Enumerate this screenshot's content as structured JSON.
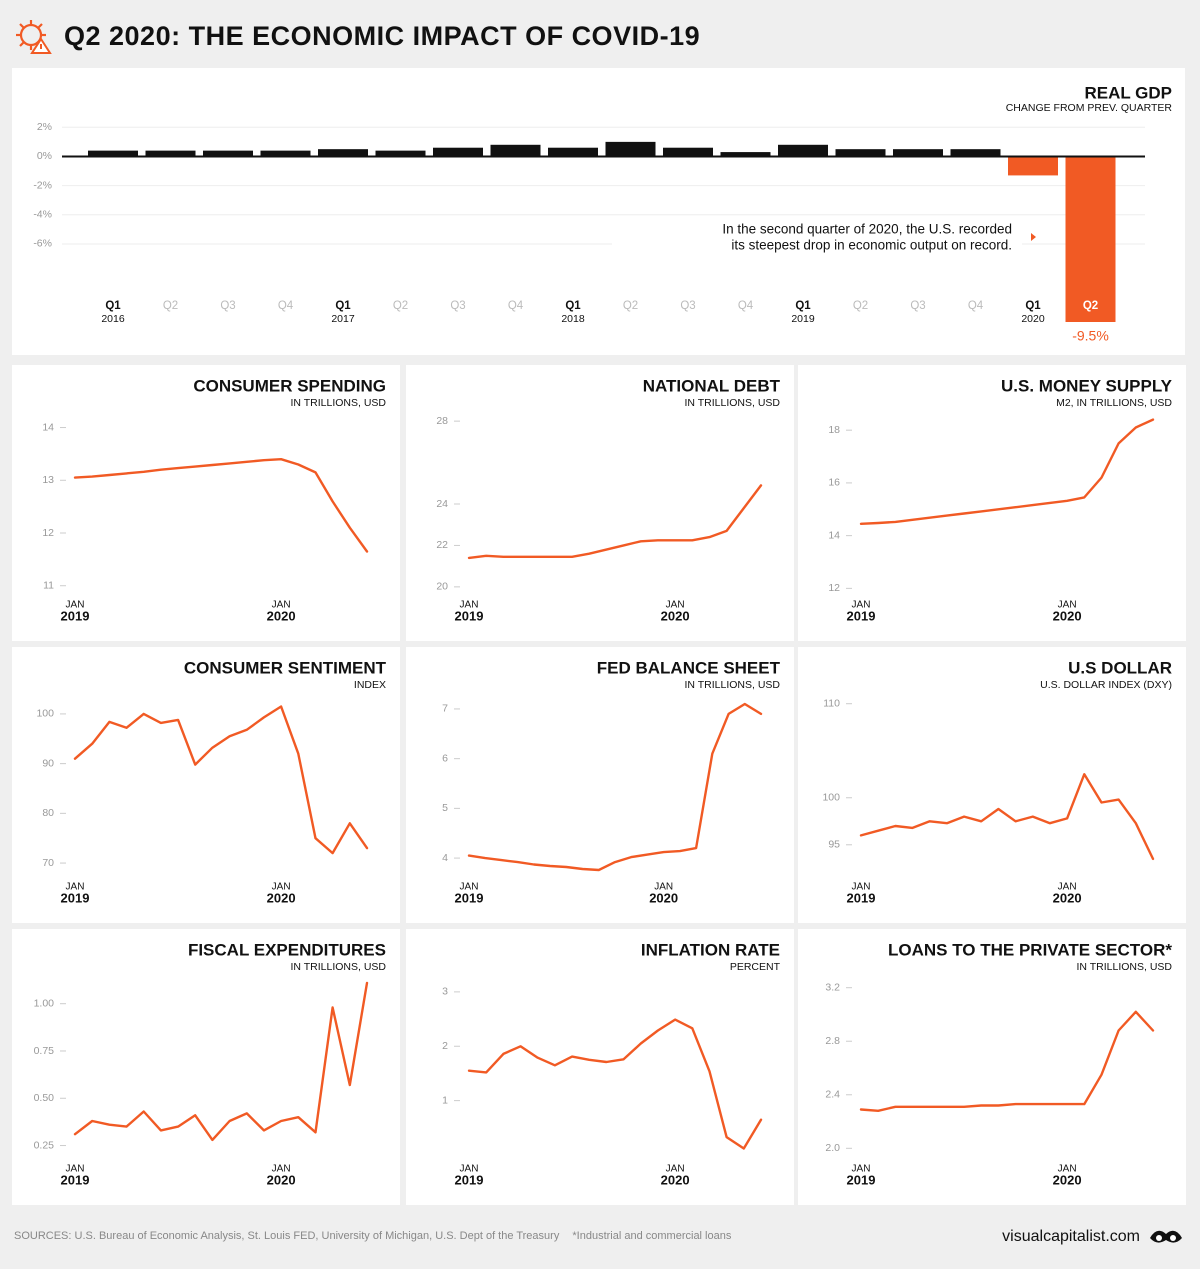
{
  "header": {
    "title": "Q2 2020: THE ECONOMIC IMPACT OF COVID-19"
  },
  "footer": {
    "sources": "SOURCES: U.S. Bureau of Economic Analysis, St. Louis FED, University of Michigan, U.S. Dept of the Treasury",
    "note": "*Industrial and commercial loans",
    "brand": "visualcapitalist.com"
  },
  "chart_data": [
    {
      "type": "bar",
      "title": "REAL GDP",
      "subtitle": "CHANGE FROM PREV. QUARTER",
      "categories": [
        "Q1",
        "Q2",
        "Q3",
        "Q4",
        "Q1",
        "Q2",
        "Q3",
        "Q4",
        "Q1",
        "Q2",
        "Q3",
        "Q4",
        "Q1",
        "Q2",
        "Q3",
        "Q4",
        "Q1",
        "Q2"
      ],
      "years": [
        "2016",
        null,
        null,
        null,
        "2017",
        null,
        null,
        null,
        "2018",
        null,
        null,
        null,
        "2019",
        null,
        null,
        null,
        "2020",
        null
      ],
      "values": [
        0.4,
        0.4,
        0.4,
        0.4,
        0.5,
        0.4,
        0.6,
        0.8,
        0.6,
        1.0,
        0.6,
        0.3,
        0.8,
        0.5,
        0.5,
        0.5,
        -1.3,
        -9.5
      ],
      "value_labels": [
        null,
        null,
        null,
        null,
        null,
        null,
        null,
        null,
        null,
        null,
        null,
        null,
        null,
        null,
        null,
        null,
        null,
        "-9.5%"
      ],
      "colors": [
        "#111111",
        "#111111",
        "#111111",
        "#111111",
        "#111111",
        "#111111",
        "#111111",
        "#111111",
        "#111111",
        "#111111",
        "#111111",
        "#111111",
        "#111111",
        "#111111",
        "#111111",
        "#111111",
        "#f15a24",
        "#f15a24"
      ],
      "ylim": [
        -9.5,
        2.5
      ],
      "yticks": [
        {
          "value": 2,
          "label": "2%"
        },
        {
          "value": 0,
          "label": "0%"
        },
        {
          "value": -2,
          "label": "-2%"
        },
        {
          "value": -4,
          "label": "-4%"
        },
        {
          "value": -6,
          "label": "-6%"
        }
      ],
      "grid": true,
      "annotation": [
        "In the second quarter of 2020, the U.S. recorded",
        "its steepest drop in economic output on record."
      ]
    },
    {
      "type": "line",
      "title": "CONSUMER SPENDING",
      "subtitle": "IN TRILLIONS, USD",
      "color": "#f15a24",
      "x": [
        "2019-01",
        "2019-02",
        "2019-03",
        "2019-04",
        "2019-05",
        "2019-06",
        "2019-07",
        "2019-08",
        "2019-09",
        "2019-10",
        "2019-11",
        "2019-12",
        "2020-01",
        "2020-02",
        "2020-03",
        "2020-04",
        "2020-05",
        "2020-06"
      ],
      "values": [
        13.05,
        13.07,
        13.1,
        13.13,
        13.16,
        13.2,
        13.23,
        13.26,
        13.29,
        13.32,
        13.35,
        13.38,
        13.4,
        13.3,
        13.15,
        12.6,
        12.1,
        11.65
      ],
      "xlim": [
        "2019-01",
        "2020-06"
      ],
      "xticks": [
        {
          "value": "2019-01",
          "label": "JAN",
          "year": "2019"
        },
        {
          "value": "2020-01",
          "label": "JAN",
          "year": "2020"
        }
      ],
      "ylim": [
        10.9,
        14.2
      ],
      "yticks": [
        11,
        12,
        13,
        14
      ]
    },
    {
      "type": "line",
      "title": "NATIONAL DEBT",
      "subtitle": "IN TRILLIONS, USD",
      "color": "#f15a24",
      "x": [
        "2019-01",
        "2019-02",
        "2019-03",
        "2019-04",
        "2019-05",
        "2019-06",
        "2019-07",
        "2019-08",
        "2019-09",
        "2019-10",
        "2019-11",
        "2019-12",
        "2020-01",
        "2020-02",
        "2020-03",
        "2020-04",
        "2020-05",
        "2020-06"
      ],
      "values": [
        21.4,
        21.5,
        21.45,
        21.45,
        21.45,
        21.45,
        21.45,
        21.6,
        21.8,
        22.0,
        22.2,
        22.25,
        22.25,
        22.25,
        22.4,
        22.7,
        23.8,
        24.9
      ],
      "xlim": [
        "2019-01",
        "2020-06"
      ],
      "xticks": [
        {
          "value": "2019-01",
          "label": "JAN",
          "year": "2019"
        },
        {
          "value": "2020-01",
          "label": "JAN",
          "year": "2020"
        }
      ],
      "ylim": [
        19.8,
        28.2
      ],
      "yticks": [
        20,
        22,
        24,
        28
      ]
    },
    {
      "type": "line",
      "title": "U.S. MONEY SUPPLY",
      "subtitle": "M2, IN TRILLIONS, USD",
      "color": "#f15a24",
      "x": [
        "2019-01",
        "2019-02",
        "2019-03",
        "2019-04",
        "2019-05",
        "2019-06",
        "2019-07",
        "2019-08",
        "2019-09",
        "2019-10",
        "2019-11",
        "2019-12",
        "2020-01",
        "2020-02",
        "2020-03",
        "2020-04",
        "2020-05",
        "2020-06"
      ],
      "values": [
        14.45,
        14.48,
        14.52,
        14.6,
        14.68,
        14.76,
        14.84,
        14.92,
        15.0,
        15.08,
        15.16,
        15.24,
        15.32,
        15.45,
        16.2,
        17.5,
        18.1,
        18.4
      ],
      "xlim": [
        "2019-01",
        "2020-06"
      ],
      "xticks": [
        {
          "value": "2019-01",
          "label": "JAN",
          "year": "2019"
        },
        {
          "value": "2020-01",
          "label": "JAN",
          "year": "2020"
        }
      ],
      "ylim": [
        11.9,
        18.5
      ],
      "yticks": [
        12,
        14,
        16,
        18
      ]
    },
    {
      "type": "line",
      "title": "CONSUMER SENTIMENT",
      "subtitle": "INDEX",
      "color": "#f15a24",
      "x": [
        "2019-01",
        "2019-02",
        "2019-03",
        "2019-04",
        "2019-05",
        "2019-06",
        "2019-07",
        "2019-08",
        "2019-09",
        "2019-10",
        "2019-11",
        "2019-12",
        "2020-01",
        "2020-02",
        "2020-03",
        "2020-04",
        "2020-05",
        "2020-06"
      ],
      "values": [
        91,
        94,
        98.4,
        97.2,
        100,
        98.2,
        98.8,
        89.8,
        93.2,
        95.5,
        96.8,
        99.3,
        101.5,
        92,
        75,
        72,
        78,
        73
      ],
      "xlim": [
        "2019-01",
        "2020-06"
      ],
      "xticks": [
        {
          "value": "2019-01",
          "label": "JAN",
          "year": "2019"
        },
        {
          "value": "2020-01",
          "label": "JAN",
          "year": "2020"
        }
      ],
      "ylim": [
        68,
        103
      ],
      "yticks": [
        70,
        80,
        90,
        100
      ]
    },
    {
      "type": "line",
      "title": "FED BALANCE SHEET",
      "subtitle": "IN TRILLIONS, USD",
      "color": "#f15a24",
      "x": [
        "2019-01",
        "2019-02",
        "2019-03",
        "2019-04",
        "2019-05",
        "2019-06",
        "2019-07",
        "2019-08",
        "2019-09",
        "2019-10",
        "2019-11",
        "2019-12",
        "2020-01",
        "2020-02",
        "2020-03",
        "2020-04",
        "2020-05",
        "2020-06",
        "2020-07"
      ],
      "values": [
        4.05,
        4.0,
        3.96,
        3.92,
        3.87,
        3.84,
        3.82,
        3.78,
        3.76,
        3.92,
        4.02,
        4.07,
        4.12,
        4.14,
        4.2,
        6.1,
        6.9,
        7.1,
        6.9
      ],
      "xlim": [
        "2019-01",
        "2020-07"
      ],
      "xticks": [
        {
          "value": "2019-01",
          "label": "JAN",
          "year": "2019"
        },
        {
          "value": "2020-01",
          "label": "JAN",
          "year": "2020"
        }
      ],
      "ylim": [
        3.7,
        7.2
      ],
      "yticks": [
        4,
        5,
        6,
        7
      ]
    },
    {
      "type": "line",
      "title": "U.S DOLLAR",
      "subtitle": "U.S. DOLLAR INDEX (DXY)",
      "color": "#f15a24",
      "x": [
        "2019-01",
        "2019-02",
        "2019-03",
        "2019-04",
        "2019-05",
        "2019-06",
        "2019-07",
        "2019-08",
        "2019-09",
        "2019-10",
        "2019-11",
        "2019-12",
        "2020-01",
        "2020-02",
        "2020-03",
        "2020-04",
        "2020-05",
        "2020-06"
      ],
      "values": [
        96,
        96.5,
        97,
        96.8,
        97.5,
        97.3,
        98,
        97.5,
        98.8,
        97.5,
        98,
        97.3,
        97.8,
        102.5,
        99.5,
        99.8,
        97.3,
        93.5
      ],
      "xlim": [
        "2019-01",
        "2020-06"
      ],
      "xticks": [
        {
          "value": "2019-01",
          "label": "JAN",
          "year": "2019"
        },
        {
          "value": "2020-01",
          "label": "JAN",
          "year": "2020"
        }
      ],
      "ylim": [
        92,
        110.5
      ],
      "yticks": [
        95,
        100,
        110
      ]
    },
    {
      "type": "line",
      "title": "FISCAL EXPENDITURES",
      "subtitle": "IN TRILLIONS, USD",
      "color": "#f15a24",
      "x": [
        "2019-01",
        "2019-02",
        "2019-03",
        "2019-04",
        "2019-05",
        "2019-06",
        "2019-07",
        "2019-08",
        "2019-09",
        "2019-10",
        "2019-11",
        "2019-12",
        "2020-01",
        "2020-02",
        "2020-03",
        "2020-04",
        "2020-05",
        "2020-06"
      ],
      "values": [
        0.31,
        0.38,
        0.36,
        0.35,
        0.43,
        0.33,
        0.35,
        0.41,
        0.28,
        0.38,
        0.42,
        0.33,
        0.38,
        0.4,
        0.32,
        0.98,
        0.57,
        1.11
      ],
      "xlim": [
        "2019-01",
        "2020-06"
      ],
      "xticks": [
        {
          "value": "2019-01",
          "label": "JAN",
          "year": "2019"
        },
        {
          "value": "2020-01",
          "label": "JAN",
          "year": "2020"
        }
      ],
      "ylim": [
        0.2,
        1.12
      ],
      "yticks": [
        0.25,
        {
          "value": 0.5,
          "label": "0.50"
        },
        0.75,
        {
          "value": 1,
          "label": "1.00"
        }
      ]
    },
    {
      "type": "line",
      "title": "INFLATION RATE",
      "subtitle": "PERCENT",
      "color": "#f15a24",
      "x": [
        "2019-01",
        "2019-02",
        "2019-03",
        "2019-04",
        "2019-05",
        "2019-06",
        "2019-07",
        "2019-08",
        "2019-09",
        "2019-10",
        "2019-11",
        "2019-12",
        "2020-01",
        "2020-02",
        "2020-03",
        "2020-04",
        "2020-05",
        "2020-06"
      ],
      "values": [
        1.55,
        1.52,
        1.86,
        2.0,
        1.79,
        1.65,
        1.81,
        1.75,
        1.71,
        1.76,
        2.05,
        2.29,
        2.49,
        2.33,
        1.54,
        0.33,
        0.12,
        0.65
      ],
      "xlim": [
        "2019-01",
        "2020-06"
      ],
      "xticks": [
        {
          "value": "2019-01",
          "label": "JAN",
          "year": "2019"
        },
        {
          "value": "2020-01",
          "label": "JAN",
          "year": "2020"
        }
      ],
      "ylim": [
        0,
        3.2
      ],
      "yticks": [
        1,
        2,
        3
      ]
    },
    {
      "type": "line",
      "title": "LOANS TO THE PRIVATE SECTOR*",
      "subtitle": "IN TRILLIONS, USD",
      "color": "#f15a24",
      "x": [
        "2019-01",
        "2019-02",
        "2019-03",
        "2019-04",
        "2019-05",
        "2019-06",
        "2019-07",
        "2019-08",
        "2019-09",
        "2019-10",
        "2019-11",
        "2019-12",
        "2020-01",
        "2020-02",
        "2020-03",
        "2020-04",
        "2020-05",
        "2020-06"
      ],
      "values": [
        2.29,
        2.28,
        2.31,
        2.31,
        2.31,
        2.31,
        2.31,
        2.32,
        2.32,
        2.33,
        2.33,
        2.33,
        2.33,
        2.33,
        2.55,
        2.88,
        3.02,
        2.88
      ],
      "xlim": [
        "2019-01",
        "2020-06"
      ],
      "xticks": [
        {
          "value": "2019-01",
          "label": "JAN",
          "year": "2019"
        },
        {
          "value": "2020-01",
          "label": "JAN",
          "year": "2020"
        }
      ],
      "ylim": [
        1.95,
        3.25
      ],
      "yticks": [
        {
          "value": 2,
          "label": "2.0"
        },
        2.4,
        2.8,
        3.2
      ]
    }
  ]
}
